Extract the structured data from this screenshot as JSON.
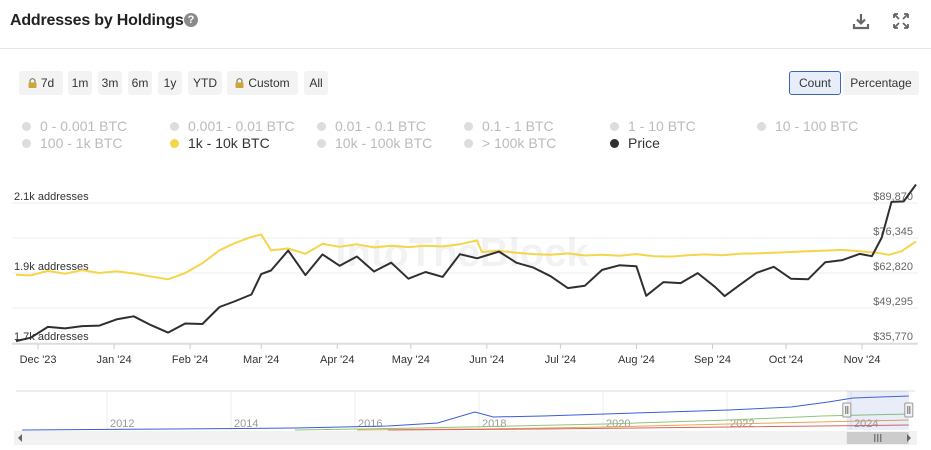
{
  "header": {
    "title": "Addresses by Holdings",
    "help_icon": "question-circle-icon",
    "download_icon": "download-icon",
    "expand_icon": "expand-icon"
  },
  "range_buttons": [
    {
      "label": "7d",
      "locked": true
    },
    {
      "label": "1m",
      "locked": false
    },
    {
      "label": "3m",
      "locked": false
    },
    {
      "label": "6m",
      "locked": false
    },
    {
      "label": "1y",
      "locked": false
    },
    {
      "label": "YTD",
      "locked": false
    },
    {
      "label": "Custom",
      "locked": true
    },
    {
      "label": "All",
      "locked": false
    }
  ],
  "view_toggle": {
    "count": "Count",
    "percentage": "Percentage",
    "selected": "Count"
  },
  "legend": [
    {
      "label": "0 - 0.001 BTC",
      "active": false,
      "color": "#dddddd"
    },
    {
      "label": "0.001 - 0.01 BTC",
      "active": false,
      "color": "#dddddd"
    },
    {
      "label": "0.01 - 0.1 BTC",
      "active": false,
      "color": "#dddddd"
    },
    {
      "label": "0.1 - 1 BTC",
      "active": false,
      "color": "#dddddd"
    },
    {
      "label": "1 - 10 BTC",
      "active": false,
      "color": "#dddddd"
    },
    {
      "label": "10 - 100 BTC",
      "active": false,
      "color": "#dddddd"
    },
    {
      "label": "100 - 1k BTC",
      "active": false,
      "color": "#dddddd"
    },
    {
      "label": "1k - 10k BTC",
      "active": true,
      "color": "#f5d54a"
    },
    {
      "label": "10k - 100k BTC",
      "active": false,
      "color": "#dddddd"
    },
    {
      "label": "> 100k BTC",
      "active": false,
      "color": "#dddddd"
    },
    {
      "label": "Price",
      "active": true,
      "color": "#2f2f33"
    }
  ],
  "watermark": "IntoTheBlock",
  "colors": {
    "holdings": "#f5d54a",
    "price": "#2f2f33",
    "navigator": "#3a5ed8",
    "grid": "#ececec"
  },
  "chart_data": {
    "type": "line",
    "left_axis": {
      "ticks": [
        "2.1k addresses",
        "1.9k addresses",
        "1.7k addresses"
      ],
      "values": [
        2100,
        1900,
        1700
      ],
      "ylim": [
        1700,
        2100
      ]
    },
    "right_axis": {
      "ticks": [
        "$89,870",
        "$76,345",
        "$62,820",
        "$49,295",
        "$35,770"
      ],
      "values": [
        89870,
        76345,
        62820,
        49295,
        35770
      ],
      "ylim": [
        35770,
        89870
      ]
    },
    "x_ticks": [
      "Dec '23",
      "Jan '24",
      "Feb '24",
      "Mar '24",
      "Apr '24",
      "May '24",
      "Jun '24",
      "Jul '24",
      "Aug '24",
      "Sep '24",
      "Oct '24",
      "Nov '24"
    ],
    "x_tick_dates": [
      "2023-12-01",
      "2024-01-01",
      "2024-02-01",
      "2024-03-01",
      "2024-04-01",
      "2024-05-01",
      "2024-06-01",
      "2024-07-01",
      "2024-08-01",
      "2024-09-01",
      "2024-10-01",
      "2024-11-01"
    ],
    "x_range": [
      "2023-11-22",
      "2024-11-23"
    ],
    "series": [
      {
        "name": "1k - 10k BTC",
        "axis": "left",
        "points": [
          [
            "2023-11-22",
            1895
          ],
          [
            "2023-11-28",
            1893
          ],
          [
            "2023-12-05",
            1906
          ],
          [
            "2023-12-12",
            1898
          ],
          [
            "2023-12-19",
            1908
          ],
          [
            "2023-12-26",
            1900
          ],
          [
            "2024-01-02",
            1905
          ],
          [
            "2024-01-09",
            1899
          ],
          [
            "2024-01-16",
            1890
          ],
          [
            "2024-01-23",
            1882
          ],
          [
            "2024-01-30",
            1900
          ],
          [
            "2024-02-06",
            1928
          ],
          [
            "2024-02-13",
            1965
          ],
          [
            "2024-02-19",
            1985
          ],
          [
            "2024-02-26",
            2003
          ],
          [
            "2024-03-01",
            2010
          ],
          [
            "2024-03-05",
            1965
          ],
          [
            "2024-03-12",
            1970
          ],
          [
            "2024-03-19",
            1955
          ],
          [
            "2024-03-26",
            1983
          ],
          [
            "2024-04-02",
            1975
          ],
          [
            "2024-04-09",
            1982
          ],
          [
            "2024-04-16",
            1973
          ],
          [
            "2024-04-23",
            1978
          ],
          [
            "2024-04-30",
            1974
          ],
          [
            "2024-05-07",
            1978
          ],
          [
            "2024-05-14",
            1976
          ],
          [
            "2024-05-21",
            1982
          ],
          [
            "2024-05-28",
            1993
          ],
          [
            "2024-05-30",
            1960
          ],
          [
            "2024-06-06",
            1963
          ],
          [
            "2024-06-13",
            1958
          ],
          [
            "2024-06-20",
            1954
          ],
          [
            "2024-06-27",
            1952
          ],
          [
            "2024-07-04",
            1956
          ],
          [
            "2024-07-11",
            1950
          ],
          [
            "2024-07-18",
            1952
          ],
          [
            "2024-07-25",
            1949
          ],
          [
            "2024-08-01",
            1954
          ],
          [
            "2024-08-08",
            1948
          ],
          [
            "2024-08-15",
            1947
          ],
          [
            "2024-08-22",
            1951
          ],
          [
            "2024-08-29",
            1953
          ],
          [
            "2024-09-05",
            1951
          ],
          [
            "2024-09-12",
            1955
          ],
          [
            "2024-09-19",
            1956
          ],
          [
            "2024-09-26",
            1958
          ],
          [
            "2024-10-03",
            1960
          ],
          [
            "2024-10-10",
            1962
          ],
          [
            "2024-10-17",
            1964
          ],
          [
            "2024-10-24",
            1966
          ],
          [
            "2024-10-31",
            1962
          ],
          [
            "2024-11-07",
            1958
          ],
          [
            "2024-11-12",
            1952
          ],
          [
            "2024-11-17",
            1962
          ],
          [
            "2024-11-23",
            1990
          ]
        ]
      },
      {
        "name": "Price",
        "axis": "right",
        "points": [
          [
            "2023-11-22",
            36500
          ],
          [
            "2023-11-28",
            37800
          ],
          [
            "2023-12-05",
            42000
          ],
          [
            "2023-12-12",
            41400
          ],
          [
            "2023-12-19",
            42300
          ],
          [
            "2023-12-26",
            42500
          ],
          [
            "2024-01-02",
            44900
          ],
          [
            "2024-01-09",
            46100
          ],
          [
            "2024-01-16",
            42700
          ],
          [
            "2024-01-23",
            39800
          ],
          [
            "2024-01-30",
            43300
          ],
          [
            "2024-02-06",
            43100
          ],
          [
            "2024-02-13",
            49700
          ],
          [
            "2024-02-19",
            51800
          ],
          [
            "2024-02-26",
            54500
          ],
          [
            "2024-03-01",
            62400
          ],
          [
            "2024-03-05",
            63800
          ],
          [
            "2024-03-12",
            71500
          ],
          [
            "2024-03-19",
            62000
          ],
          [
            "2024-03-26",
            70000
          ],
          [
            "2024-04-02",
            65600
          ],
          [
            "2024-04-09",
            69200
          ],
          [
            "2024-04-16",
            63400
          ],
          [
            "2024-04-23",
            66800
          ],
          [
            "2024-04-30",
            60600
          ],
          [
            "2024-05-07",
            63200
          ],
          [
            "2024-05-14",
            61300
          ],
          [
            "2024-05-21",
            70100
          ],
          [
            "2024-05-28",
            68500
          ],
          [
            "2024-06-06",
            71100
          ],
          [
            "2024-06-13",
            66800
          ],
          [
            "2024-06-20",
            64900
          ],
          [
            "2024-06-27",
            61600
          ],
          [
            "2024-07-04",
            57000
          ],
          [
            "2024-07-11",
            57900
          ],
          [
            "2024-07-18",
            64000
          ],
          [
            "2024-07-25",
            65800
          ],
          [
            "2024-08-01",
            65400
          ],
          [
            "2024-08-05",
            54000
          ],
          [
            "2024-08-12",
            59300
          ],
          [
            "2024-08-19",
            58900
          ],
          [
            "2024-08-26",
            62800
          ],
          [
            "2024-09-02",
            57500
          ],
          [
            "2024-09-06",
            53900
          ],
          [
            "2024-09-12",
            58100
          ],
          [
            "2024-09-19",
            62900
          ],
          [
            "2024-09-26",
            65200
          ],
          [
            "2024-10-03",
            60600
          ],
          [
            "2024-10-10",
            60400
          ],
          [
            "2024-10-17",
            67000
          ],
          [
            "2024-10-24",
            67800
          ],
          [
            "2024-10-31",
            70200
          ],
          [
            "2024-11-05",
            69300
          ],
          [
            "2024-11-09",
            76500
          ],
          [
            "2024-11-13",
            90300
          ],
          [
            "2024-11-18",
            90500
          ],
          [
            "2024-11-23",
            97000
          ]
        ]
      }
    ],
    "navigator": {
      "ticks": [
        "2012",
        "2014",
        "2016",
        "2018",
        "2020",
        "2022",
        "2024"
      ],
      "tick_years": [
        2012,
        2014,
        2016,
        2018,
        2020,
        2022,
        2024
      ],
      "year_range": [
        2010.5,
        2025.0
      ],
      "selected_year_range": [
        2023.9,
        2024.9
      ]
    },
    "grid": true,
    "legend_position": "top"
  }
}
